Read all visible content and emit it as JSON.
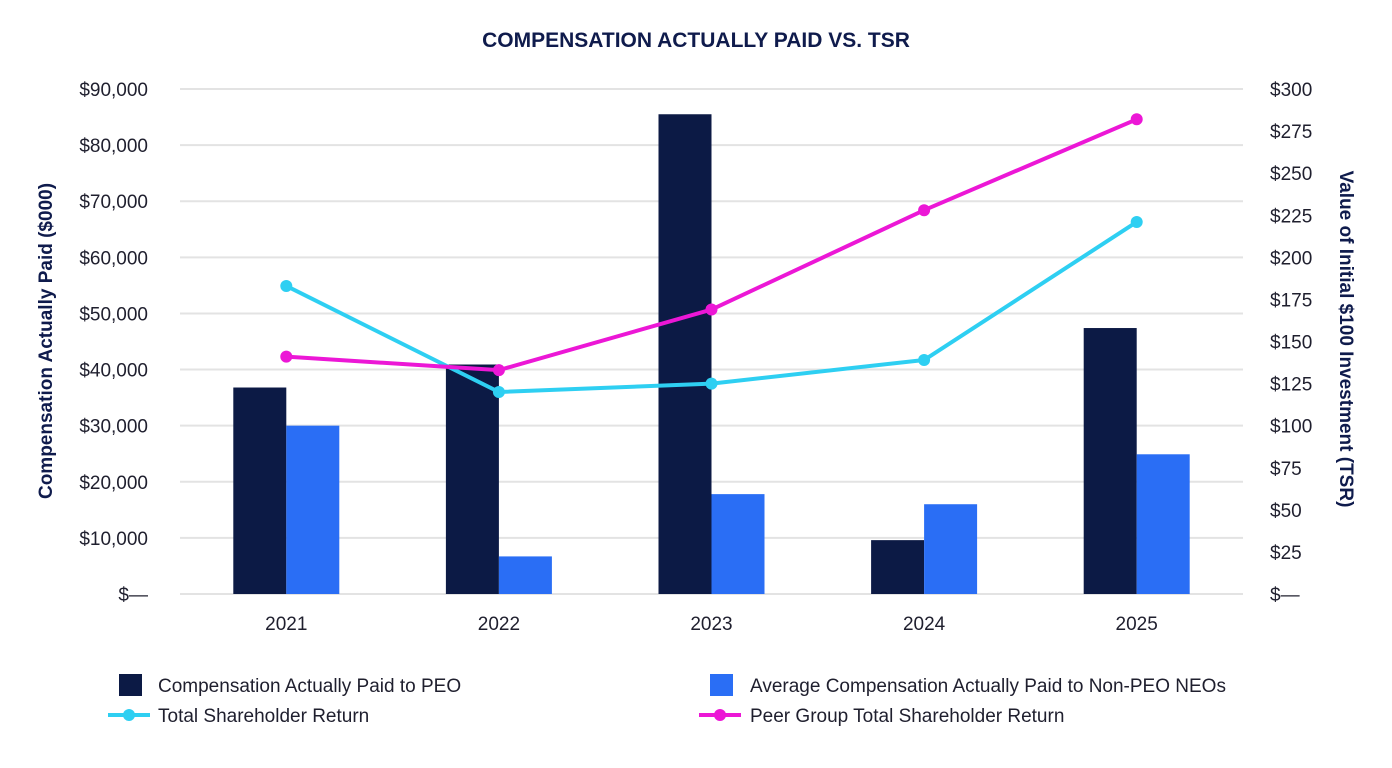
{
  "chart_data": {
    "type": "bar",
    "title": "COMPENSATION ACTUALLY PAID VS. TSR",
    "categories": [
      "2021",
      "2022",
      "2023",
      "2024",
      "2025"
    ],
    "ylabel": "Compensation Actually Paid ($000)",
    "y2label": "Value of Initial $100 Investment (TSR)",
    "ylim": [
      0,
      90000
    ],
    "y2lim": [
      0,
      300
    ],
    "y_ticks": [
      {
        "value": 0,
        "label": "$—"
      },
      {
        "value": 10000,
        "label": "$10,000"
      },
      {
        "value": 20000,
        "label": "$20,000"
      },
      {
        "value": 30000,
        "label": "$30,000"
      },
      {
        "value": 40000,
        "label": "$40,000"
      },
      {
        "value": 50000,
        "label": "$50,000"
      },
      {
        "value": 60000,
        "label": "$60,000"
      },
      {
        "value": 70000,
        "label": "$70,000"
      },
      {
        "value": 80000,
        "label": "$80,000"
      },
      {
        "value": 90000,
        "label": "$90,000"
      }
    ],
    "y2_ticks": [
      {
        "value": 0,
        "label": "$—"
      },
      {
        "value": 25,
        "label": "$25"
      },
      {
        "value": 50,
        "label": "$50"
      },
      {
        "value": 75,
        "label": "$75"
      },
      {
        "value": 100,
        "label": "$100"
      },
      {
        "value": 125,
        "label": "$125"
      },
      {
        "value": 150,
        "label": "$150"
      },
      {
        "value": 175,
        "label": "$175"
      },
      {
        "value": 200,
        "label": "$200"
      },
      {
        "value": 225,
        "label": "$225"
      },
      {
        "value": 250,
        "label": "$250"
      },
      {
        "value": 275,
        "label": "$275"
      },
      {
        "value": 300,
        "label": "$300"
      }
    ],
    "bar_series": [
      {
        "name": "Compensation Actually Paid to PEO",
        "color": "#0c1a45",
        "values": [
          36800,
          40900,
          85500,
          9600,
          47400
        ]
      },
      {
        "name": "Average Compensation Actually Paid to Non-PEO NEOs",
        "color": "#2a6ef5",
        "values": [
          30000,
          6700,
          17800,
          16000,
          24900
        ]
      }
    ],
    "line_series": [
      {
        "name": "Total Shareholder Return",
        "color": "#2ecff2",
        "values": [
          183,
          120,
          125,
          139,
          221
        ]
      },
      {
        "name": "Peer Group Total Shareholder Return",
        "color": "#ec17d6",
        "values": [
          141,
          133,
          169,
          228,
          282
        ]
      }
    ],
    "legend_position": "bottom"
  }
}
